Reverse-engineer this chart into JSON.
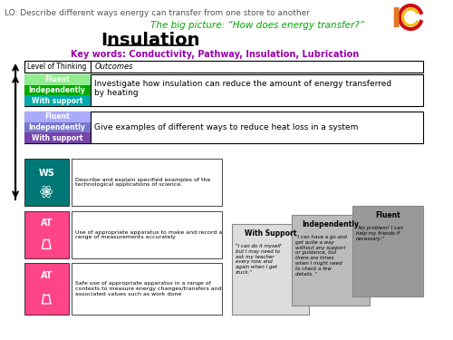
{
  "lo_text": "LO: Describe different ways energy can transfer from one store to another",
  "big_picture": "The big picture: “How does energy transfer?”",
  "title": "Insulation",
  "key_words": "Key words: Conductivity, Pathway, Insulation, Lubrication",
  "table_header_col1": "Level of Thinking",
  "table_header_col2": "Outcomes",
  "row1_labels": [
    "Fluent",
    "Independently",
    "With support"
  ],
  "row1_colors": [
    "#90EE90",
    "#00AA00",
    "#00AAAA"
  ],
  "row1_outcome": "Investigate how insulation can reduce the amount of energy transferred\nby heating",
  "row2_labels": [
    "Fluent",
    "Independently",
    "With support"
  ],
  "row2_colors": [
    "#AAAAFF",
    "#7777CC",
    "#7744AA"
  ],
  "row2_outcome": "Give examples of different ways to reduce heat loss in a system",
  "ws_color": "#007777",
  "at_color1": "#FF4488",
  "at_color2": "#FF4488",
  "ws_label": "WS",
  "at_label": "AT",
  "ws_text": "Describe and explain specified examples of the\ntechnological applications of science.",
  "at_text1": "Use of appropriate apparatus to make and record a\nrange of measurements accurately",
  "at_text2": "Safe use of appropriate apparatus in a range of\ncontexts to measure energy changes/transfers and\nassociated values such as work done",
  "support_title": "With Support",
  "support_text": "\"I can do it myself\nbut I may need to\nask my teacher\nevery now and\nagain when I get\nstuck.\"",
  "independently_title": "Independently",
  "independently_text": "\"I can have a go and\nget quite a way\nwithout any support\nor guidance, but\nthere are times\nwhen I might need\nto check a few\ndetails. \"",
  "fluent_title": "Fluent",
  "fluent_text": "\"No problem! I can\nhelp my friends if\nnecessary.\"",
  "support_box_color": "#CCCCCC",
  "independently_box_color": "#AAAAAA",
  "fluent_box_color": "#888888",
  "lo_color": "#555555",
  "big_picture_color": "#00AA00",
  "title_color": "#000000",
  "key_words_color": "#9900AA",
  "arrow_color": "#000000"
}
